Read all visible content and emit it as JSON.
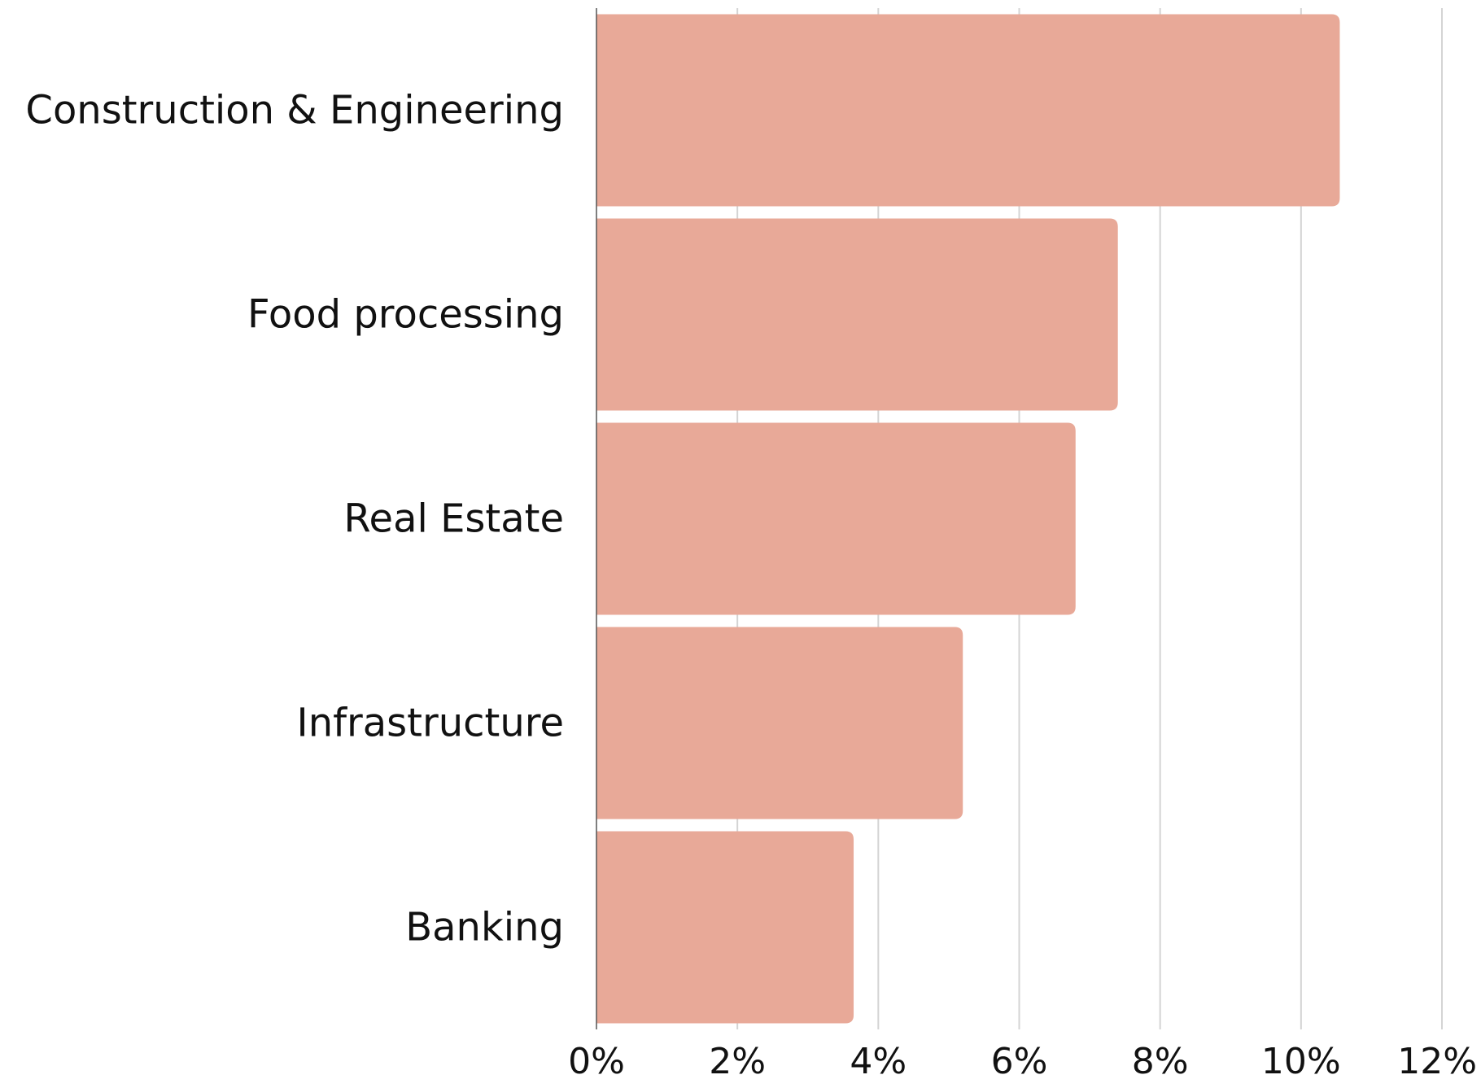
{
  "chart_data": {
    "type": "bar",
    "orientation": "horizontal",
    "categories": [
      "Construction & Engineering",
      "Food processing",
      "Real Estate",
      "Infrastructure",
      "Banking"
    ],
    "values": [
      10.55,
      7.4,
      6.8,
      5.2,
      3.65
    ],
    "unit": "%",
    "xlim": [
      0,
      12
    ],
    "x_ticks": [
      0,
      2,
      4,
      6,
      8,
      10,
      12
    ],
    "x_tick_labels": [
      "0%",
      "2%",
      "4%",
      "6%",
      "8%",
      "10%",
      "12%"
    ],
    "title": "",
    "xlabel": "",
    "ylabel": "",
    "grid": "vertical",
    "legend": "none",
    "bar_color": "#e8a998",
    "grid_color": "#d4d4d4"
  }
}
